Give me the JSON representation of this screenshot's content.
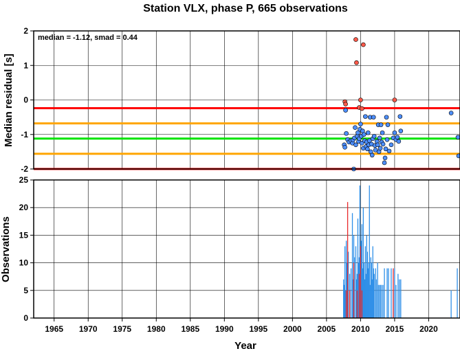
{
  "title": "Station VLX, phase P, 665 observations",
  "chart_data": [
    {
      "type": "scatter",
      "ylabel": "Median residual [s]",
      "annotation": "median = -1.12, smad = 0.44",
      "xlim": [
        1962,
        2024.6
      ],
      "ylim": [
        -2,
        2
      ],
      "yticks": [
        2,
        1,
        0,
        -1,
        -2
      ],
      "grid": true,
      "reference_lines": [
        {
          "y": -0.24,
          "color": "#ff0000"
        },
        {
          "y": -0.68,
          "color": "#ffa500"
        },
        {
          "y": -1.12,
          "color": "#00e400"
        },
        {
          "y": -1.56,
          "color": "#ffa500"
        },
        {
          "y": -2.0,
          "color": "#ff0000"
        }
      ],
      "series": [
        {
          "color": "#4d8fff",
          "points": [
            [
              2007.8,
              -0.3
            ],
            [
              2007.6,
              -1.3
            ],
            [
              2007.7,
              -1.37
            ],
            [
              2007.9,
              -0.97
            ],
            [
              2008.1,
              -1.15
            ],
            [
              2008.3,
              -1.22
            ],
            [
              2008.6,
              -1.18
            ],
            [
              2008.8,
              -1.25
            ],
            [
              2008.9,
              -1.16
            ],
            [
              2009.1,
              -1.1
            ],
            [
              2009.2,
              -0.8
            ],
            [
              2009.3,
              -1.3
            ],
            [
              2009.5,
              -1.05
            ],
            [
              2009.6,
              -0.95
            ],
            [
              2009.7,
              -1.2
            ],
            [
              2009.8,
              -1.12
            ],
            [
              2009.9,
              -0.85
            ],
            [
              2010.0,
              -0.7
            ],
            [
              2010.1,
              -1.05
            ],
            [
              2010.2,
              -1.25
            ],
            [
              2010.3,
              -0.9
            ],
            [
              2010.4,
              -1.4
            ],
            [
              2010.5,
              -1.0
            ],
            [
              2010.6,
              -1.18
            ],
            [
              2010.7,
              -0.48
            ],
            [
              2010.8,
              -1.35
            ],
            [
              2010.9,
              -1.22
            ],
            [
              2011.0,
              -1.42
            ],
            [
              2011.1,
              -0.95
            ],
            [
              2011.2,
              -1.3
            ],
            [
              2011.3,
              -1.18
            ],
            [
              2011.4,
              -0.5
            ],
            [
              2011.5,
              -1.5
            ],
            [
              2011.6,
              -1.28
            ],
            [
              2011.7,
              -1.6
            ],
            [
              2011.8,
              -1.12
            ],
            [
              2011.9,
              -0.5
            ],
            [
              2012.0,
              -1.05
            ],
            [
              2012.1,
              -1.32
            ],
            [
              2012.2,
              -1.45
            ],
            [
              2012.4,
              -1.2
            ],
            [
              2012.5,
              -1.3
            ],
            [
              2012.6,
              -0.72
            ],
            [
              2012.7,
              -1.5
            ],
            [
              2012.8,
              -1.1
            ],
            [
              2012.9,
              -1.4
            ],
            [
              2013.0,
              -0.72
            ],
            [
              2013.1,
              -1.22
            ],
            [
              2013.2,
              -0.95
            ],
            [
              2013.3,
              -1.28
            ],
            [
              2013.5,
              -1.82
            ],
            [
              2013.6,
              -1.68
            ],
            [
              2013.7,
              -1.42
            ],
            [
              2013.8,
              -0.5
            ],
            [
              2013.9,
              -1.15
            ],
            [
              2014.0,
              -0.72
            ],
            [
              2014.2,
              -1.48
            ],
            [
              2014.5,
              -1.3
            ],
            [
              2014.8,
              -1.1
            ],
            [
              2015.0,
              -0.95
            ],
            [
              2015.2,
              -1.15
            ],
            [
              2015.4,
              -1.08
            ],
            [
              2015.6,
              -1.2
            ],
            [
              2015.8,
              -0.48
            ],
            [
              2015.9,
              -0.9
            ],
            [
              2009.0,
              -2.0
            ],
            [
              2023.3,
              -0.38
            ],
            [
              2024.3,
              -1.08
            ],
            [
              2024.4,
              -1.62
            ]
          ]
        },
        {
          "color": "#ff5a4a",
          "points": [
            [
              2007.7,
              -0.05
            ],
            [
              2007.8,
              -0.12
            ],
            [
              2009.3,
              1.75
            ],
            [
              2009.4,
              1.08
            ],
            [
              2010.0,
              0.0
            ],
            [
              2010.4,
              1.6
            ],
            [
              2009.8,
              -0.22
            ],
            [
              2010.2,
              -0.25
            ],
            [
              2015.0,
              0.0
            ]
          ]
        }
      ]
    },
    {
      "type": "bar",
      "xlabel": "Year",
      "ylabel": "Observations",
      "xlim": [
        1962,
        2024.6
      ],
      "ylim": [
        0,
        25
      ],
      "yticks": [
        0,
        5,
        10,
        15,
        20,
        25
      ],
      "xticks": [
        1965,
        1970,
        1975,
        1980,
        1985,
        1990,
        1995,
        2000,
        2005,
        2010,
        2015,
        2020
      ],
      "grid": true,
      "series": [
        {
          "color": "#2e8fe8",
          "bars": [
            [
              2007.5,
              7
            ],
            [
              2007.6,
              6
            ],
            [
              2007.7,
              13
            ],
            [
              2007.8,
              5
            ],
            [
              2007.9,
              14
            ],
            [
              2008.0,
              10
            ],
            [
              2008.2,
              12
            ],
            [
              2008.4,
              8
            ],
            [
              2008.6,
              9
            ],
            [
              2008.8,
              19
            ],
            [
              2008.9,
              7
            ],
            [
              2009.0,
              15
            ],
            [
              2009.1,
              11
            ],
            [
              2009.3,
              13
            ],
            [
              2009.4,
              7
            ],
            [
              2009.5,
              8
            ],
            [
              2009.6,
              18
            ],
            [
              2009.7,
              10
            ],
            [
              2009.8,
              11
            ],
            [
              2009.9,
              24
            ],
            [
              2010.0,
              12
            ],
            [
              2010.1,
              14
            ],
            [
              2010.2,
              17
            ],
            [
              2010.3,
              9
            ],
            [
              2010.4,
              20
            ],
            [
              2010.5,
              10
            ],
            [
              2010.6,
              7
            ],
            [
              2010.7,
              13
            ],
            [
              2010.8,
              8
            ],
            [
              2010.9,
              15
            ],
            [
              2011.0,
              12
            ],
            [
              2011.1,
              9
            ],
            [
              2011.2,
              10
            ],
            [
              2011.3,
              24
            ],
            [
              2011.4,
              6
            ],
            [
              2011.5,
              11
            ],
            [
              2011.6,
              10
            ],
            [
              2011.7,
              7
            ],
            [
              2011.8,
              13
            ],
            [
              2011.9,
              9
            ],
            [
              2012.0,
              8
            ],
            [
              2012.2,
              9
            ],
            [
              2012.3,
              7
            ],
            [
              2012.5,
              10
            ],
            [
              2012.6,
              6
            ],
            [
              2012.8,
              6
            ],
            [
              2012.9,
              6
            ],
            [
              2013.1,
              6
            ],
            [
              2013.3,
              6
            ],
            [
              2013.5,
              9
            ],
            [
              2013.9,
              9
            ],
            [
              2014.1,
              9
            ],
            [
              2014.5,
              9
            ],
            [
              2014.8,
              5
            ],
            [
              2015.0,
              9
            ],
            [
              2015.2,
              6
            ],
            [
              2015.5,
              8
            ],
            [
              2015.7,
              7
            ],
            [
              2015.9,
              7
            ],
            [
              2023.3,
              5
            ],
            [
              2024.2,
              9
            ]
          ]
        },
        {
          "color": "#e8282a",
          "bars": [
            [
              2007.9,
              5
            ],
            [
              2008.1,
              21
            ],
            [
              2008.4,
              5
            ],
            [
              2009.0,
              10
            ],
            [
              2009.5,
              5
            ],
            [
              2009.8,
              8
            ],
            [
              2010.0,
              13
            ],
            [
              2010.2,
              5
            ],
            [
              2014.8,
              9
            ]
          ]
        }
      ]
    }
  ]
}
